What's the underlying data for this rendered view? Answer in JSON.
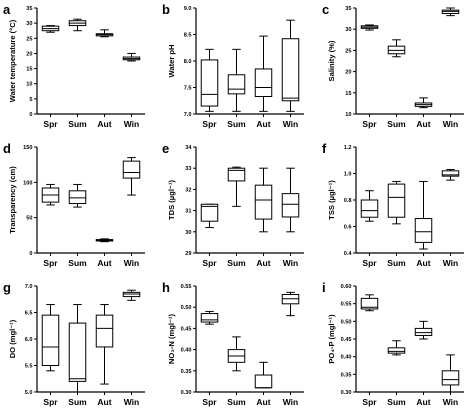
{
  "chart_data": [
    {
      "id": "a",
      "letter": "a",
      "type": "boxplot",
      "ylabel": "Water temperature (°C)",
      "categories": [
        "Spr",
        "Sum",
        "Aut",
        "Win"
      ],
      "ylim": [
        0,
        35
      ],
      "yticks": [
        0,
        5,
        10,
        15,
        20,
        25,
        30,
        35
      ],
      "tick_decimals": 0,
      "boxes": [
        {
          "min": 27,
          "q1": 27.5,
          "median": 28.2,
          "q3": 29,
          "max": 29.2
        },
        {
          "min": 27.5,
          "q1": 29.2,
          "median": 30,
          "q3": 30.8,
          "max": 31.3
        },
        {
          "min": 25.5,
          "q1": 25.8,
          "median": 26.2,
          "q3": 26.5,
          "max": 27.8
        },
        {
          "min": 17.5,
          "q1": 17.9,
          "median": 18.3,
          "q3": 18.8,
          "max": 20
        }
      ]
    },
    {
      "id": "b",
      "letter": "b",
      "type": "boxplot",
      "ylabel": "Water pH",
      "categories": [
        "Spr",
        "Sum",
        "Aut",
        "Win"
      ],
      "ylim": [
        7.0,
        9.0
      ],
      "yticks": [
        7.0,
        7.5,
        8.0,
        8.5,
        9.0
      ],
      "tick_decimals": 1,
      "boxes": [
        {
          "min": 7.05,
          "q1": 7.15,
          "median": 7.37,
          "q3": 8.02,
          "max": 8.22
        },
        {
          "min": 7.05,
          "q1": 7.38,
          "median": 7.47,
          "q3": 7.74,
          "max": 8.22
        },
        {
          "min": 7.05,
          "q1": 7.33,
          "median": 7.5,
          "q3": 7.85,
          "max": 8.47
        },
        {
          "min": 7.05,
          "q1": 7.25,
          "median": 7.3,
          "q3": 8.42,
          "max": 8.77
        }
      ]
    },
    {
      "id": "c",
      "letter": "c",
      "type": "boxplot",
      "ylabel": "Salinity (%)",
      "categories": [
        "Spr",
        "Sum",
        "Aut",
        "Win"
      ],
      "ylim": [
        10,
        35
      ],
      "yticks": [
        10,
        15,
        20,
        25,
        30,
        35
      ],
      "tick_decimals": 0,
      "boxes": [
        {
          "min": 29.8,
          "q1": 30.2,
          "median": 30.5,
          "q3": 30.8,
          "max": 31
        },
        {
          "min": 23.5,
          "q1": 24.2,
          "median": 25,
          "q3": 26,
          "max": 27.5
        },
        {
          "min": 11.5,
          "q1": 11.8,
          "median": 12.2,
          "q3": 12.6,
          "max": 13.8
        },
        {
          "min": 33.2,
          "q1": 33.7,
          "median": 34.2,
          "q3": 34.5,
          "max": 35
        }
      ]
    },
    {
      "id": "d",
      "letter": "d",
      "type": "boxplot",
      "ylabel": "Transparency (cm)",
      "categories": [
        "Spr",
        "Sum",
        "Aut",
        "Win"
      ],
      "ylim": [
        0,
        150
      ],
      "yticks": [
        0,
        50,
        100,
        150
      ],
      "tick_decimals": 0,
      "boxes": [
        {
          "min": 68,
          "q1": 72,
          "median": 82,
          "q3": 92,
          "max": 97
        },
        {
          "min": 65,
          "q1": 70,
          "median": 78,
          "q3": 88,
          "max": 97
        },
        {
          "min": 16,
          "q1": 17,
          "median": 18,
          "q3": 19,
          "max": 20
        },
        {
          "min": 82,
          "q1": 106,
          "median": 114,
          "q3": 130,
          "max": 135
        }
      ]
    },
    {
      "id": "e",
      "letter": "e",
      "type": "boxplot",
      "ylabel": "TDS (µgl⁻¹)",
      "categories": [
        "Spr",
        "Sum",
        "Aut",
        "Win"
      ],
      "ylim": [
        29,
        34
      ],
      "yticks": [
        29,
        30,
        31,
        32,
        33,
        34
      ],
      "tick_decimals": 0,
      "boxes": [
        {
          "min": 30.2,
          "q1": 30.5,
          "median": 31.2,
          "q3": 31.3,
          "max": 31.3
        },
        {
          "min": 31.2,
          "q1": 32.4,
          "median": 32.9,
          "q3": 33,
          "max": 33.05
        },
        {
          "min": 30,
          "q1": 30.6,
          "median": 31.5,
          "q3": 32.2,
          "max": 33
        },
        {
          "min": 30,
          "q1": 30.7,
          "median": 31.3,
          "q3": 31.8,
          "max": 33
        }
      ]
    },
    {
      "id": "f",
      "letter": "f",
      "type": "boxplot",
      "ylabel": "TSS (µgl⁻¹)",
      "categories": [
        "Spr",
        "Sum",
        "Aut",
        "Win"
      ],
      "ylim": [
        0.4,
        1.2
      ],
      "yticks": [
        0.4,
        0.6,
        0.8,
        1.0,
        1.2
      ],
      "tick_decimals": 1,
      "boxes": [
        {
          "min": 0.64,
          "q1": 0.67,
          "median": 0.72,
          "q3": 0.8,
          "max": 0.87
        },
        {
          "min": 0.62,
          "q1": 0.67,
          "median": 0.82,
          "q3": 0.92,
          "max": 0.94
        },
        {
          "min": 0.43,
          "q1": 0.48,
          "median": 0.56,
          "q3": 0.66,
          "max": 0.94
        },
        {
          "min": 0.95,
          "q1": 0.98,
          "median": 0.99,
          "q3": 1.02,
          "max": 1.03
        }
      ]
    },
    {
      "id": "g",
      "letter": "g",
      "type": "boxplot",
      "ylabel": "DO (mgl⁻¹)",
      "categories": [
        "Spr",
        "Sum",
        "Aut",
        "Win"
      ],
      "ylim": [
        5.0,
        7.0
      ],
      "yticks": [
        5.0,
        5.5,
        6.0,
        6.5,
        7.0
      ],
      "tick_decimals": 1,
      "boxes": [
        {
          "min": 5.4,
          "q1": 5.5,
          "median": 5.85,
          "q3": 6.45,
          "max": 6.65
        },
        {
          "min": 5.0,
          "q1": 5.2,
          "median": 5.25,
          "q3": 6.3,
          "max": 6.65
        },
        {
          "min": 5.15,
          "q1": 5.85,
          "median": 6.2,
          "q3": 6.45,
          "max": 6.65
        },
        {
          "min": 6.73,
          "q1": 6.8,
          "median": 6.85,
          "q3": 6.88,
          "max": 6.92
        }
      ]
    },
    {
      "id": "h",
      "letter": "h",
      "type": "boxplot",
      "ylabel": "NO₃-N (mgl⁻¹)",
      "categories": [
        "Spr",
        "Sum",
        "Aut",
        "Win"
      ],
      "ylim": [
        0.3,
        0.55
      ],
      "yticks": [
        0.3,
        0.35,
        0.4,
        0.45,
        0.5,
        0.55
      ],
      "tick_decimals": 2,
      "boxes": [
        {
          "min": 0.46,
          "q1": 0.465,
          "median": 0.47,
          "q3": 0.485,
          "max": 0.49
        },
        {
          "min": 0.35,
          "q1": 0.37,
          "median": 0.385,
          "q3": 0.4,
          "max": 0.43
        },
        {
          "min": 0.31,
          "q1": 0.31,
          "median": 0.31,
          "q3": 0.34,
          "max": 0.37
        },
        {
          "min": 0.48,
          "q1": 0.508,
          "median": 0.52,
          "q3": 0.53,
          "max": 0.535
        }
      ]
    },
    {
      "id": "i",
      "letter": "i",
      "type": "boxplot",
      "ylabel": "PO₄-P (mgl⁻¹)",
      "categories": [
        "Spr",
        "Sum",
        "Aut",
        "Win"
      ],
      "ylim": [
        0.3,
        0.6
      ],
      "yticks": [
        0.3,
        0.35,
        0.4,
        0.45,
        0.5,
        0.55,
        0.6
      ],
      "tick_decimals": 2,
      "boxes": [
        {
          "min": 0.53,
          "q1": 0.535,
          "median": 0.54,
          "q3": 0.565,
          "max": 0.575
        },
        {
          "min": 0.405,
          "q1": 0.41,
          "median": 0.415,
          "q3": 0.425,
          "max": 0.445
        },
        {
          "min": 0.45,
          "q1": 0.46,
          "median": 0.468,
          "q3": 0.48,
          "max": 0.5
        },
        {
          "min": 0.3,
          "q1": 0.32,
          "median": 0.335,
          "q3": 0.36,
          "max": 0.405
        }
      ]
    }
  ]
}
